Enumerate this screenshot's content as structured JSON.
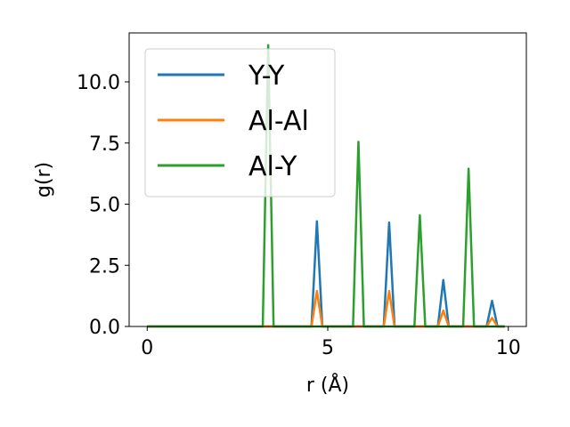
{
  "chart_data": {
    "type": "line",
    "xlabel": "r (Å)",
    "ylabel": "g(r)",
    "xlim": [
      -0.5,
      10.5
    ],
    "ylim": [
      0,
      12.0
    ],
    "xticks": [
      0,
      5,
      10
    ],
    "xtick_labels": [
      "0",
      "5",
      "10"
    ],
    "yticks": [
      0,
      2.5,
      5.0,
      7.5,
      10.0
    ],
    "ytick_labels": [
      "0.0",
      "2.5",
      "5.0",
      "7.5",
      "10.0"
    ],
    "grid": false,
    "legend_position": "top-left",
    "series": [
      {
        "name": "Y-Y",
        "color": "#1f77b4",
        "x": [
          0,
          4.55,
          4.7,
          4.85,
          6.55,
          6.7,
          6.85,
          8.05,
          8.2,
          8.35,
          9.4,
          9.55,
          9.7,
          9.9
        ],
        "y": [
          0,
          0,
          4.3,
          0,
          0,
          4.25,
          0,
          0,
          1.9,
          0,
          0,
          1.05,
          0,
          0
        ]
      },
      {
        "name": "Al-Al",
        "color": "#ff7f0e",
        "x": [
          0,
          4.55,
          4.7,
          4.85,
          6.55,
          6.7,
          6.85,
          8.05,
          8.2,
          8.35,
          9.4,
          9.55,
          9.7,
          9.9
        ],
        "y": [
          0,
          0,
          1.45,
          0,
          0,
          1.45,
          0,
          0,
          0.65,
          0,
          0,
          0.35,
          0,
          0
        ]
      },
      {
        "name": "Al-Y",
        "color": "#2ca02c",
        "x": [
          0,
          3.2,
          3.35,
          3.5,
          5.7,
          5.85,
          6.0,
          7.4,
          7.55,
          7.7,
          8.75,
          8.9,
          9.05,
          9.9
        ],
        "y": [
          0,
          0,
          11.5,
          0,
          0,
          7.55,
          0,
          0,
          4.55,
          0,
          0,
          6.45,
          0,
          0
        ]
      }
    ]
  }
}
